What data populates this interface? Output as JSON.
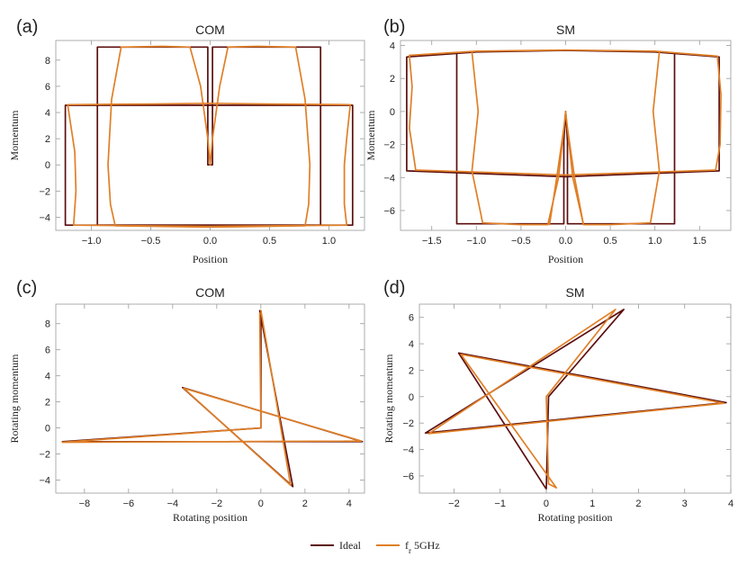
{
  "legend": {
    "items": [
      {
        "label": "Ideal",
        "color": "#5c0f0f"
      },
      {
        "label": "f",
        "sub": "r",
        "suffix": " 5GHz",
        "color": "#e07f27"
      }
    ]
  },
  "chart_data": [
    {
      "id": "a",
      "panel_label": "(a)",
      "type": "line",
      "title": "COM",
      "xlabel": "Position",
      "ylabel": "Momentum",
      "xlim": [
        -1.3,
        1.3
      ],
      "ylim": [
        -5.0,
        9.5
      ],
      "xticks": [
        -1.0,
        -0.5,
        0.0,
        0.5,
        1.0
      ],
      "xtick_labels": [
        "−1.0",
        "−0.5",
        "0.0",
        "0.5",
        "1.0"
      ],
      "yticks": [
        -4,
        -2,
        0,
        2,
        4,
        6,
        8
      ],
      "ytick_labels": [
        "−4",
        "−2",
        "0",
        "2",
        "4",
        "6",
        "8"
      ],
      "series": [
        {
          "name": "Ideal",
          "color": "#5c0f0f",
          "segments": [
            [
              [
                -0.95,
                9.0
              ],
              [
                -0.02,
                9.0
              ],
              [
                -0.02,
                0.0
              ],
              [
                0.02,
                0.0
              ],
              [
                0.02,
                9.0
              ],
              [
                0.93,
                9.0
              ],
              [
                0.93,
                -4.6
              ],
              [
                -0.95,
                -4.6
              ],
              [
                -0.95,
                9.0
              ]
            ],
            [
              [
                -1.22,
                4.55
              ],
              [
                1.2,
                4.55
              ],
              [
                1.2,
                -4.6
              ],
              [
                -1.22,
                -4.6
              ],
              [
                -1.22,
                4.55
              ]
            ]
          ]
        },
        {
          "name": "f_r 5GHz",
          "color": "#e07f27",
          "segments": [
            [
              [
                -0.75,
                9.0
              ],
              [
                -0.4,
                9.05
              ],
              [
                -0.17,
                9.0
              ],
              [
                -0.08,
                6.0
              ],
              [
                -0.02,
                2.0
              ],
              [
                0.0,
                0.0
              ],
              [
                0.02,
                2.0
              ],
              [
                0.08,
                6.0
              ],
              [
                0.15,
                9.0
              ],
              [
                0.4,
                9.05
              ],
              [
                0.72,
                9.0
              ],
              [
                0.8,
                5.0
              ],
              [
                0.84,
                0.0
              ],
              [
                0.83,
                -3.0
              ],
              [
                0.8,
                -4.65
              ],
              [
                0.0,
                -4.75
              ],
              [
                -0.8,
                -4.65
              ],
              [
                -0.84,
                -3.0
              ],
              [
                -0.86,
                0.0
              ],
              [
                -0.83,
                5.0
              ],
              [
                -0.75,
                9.0
              ]
            ],
            [
              [
                -1.2,
                4.6
              ],
              [
                -0.5,
                4.65
              ],
              [
                0.0,
                4.7
              ],
              [
                0.5,
                4.65
              ],
              [
                1.18,
                4.6
              ],
              [
                1.15,
                2.0
              ],
              [
                1.13,
                0.0
              ],
              [
                1.13,
                -3.0
              ],
              [
                1.15,
                -4.6
              ],
              [
                0.0,
                -4.7
              ],
              [
                -1.15,
                -4.6
              ],
              [
                -1.13,
                -2.0
              ],
              [
                -1.14,
                1.0
              ],
              [
                -1.2,
                4.6
              ]
            ]
          ]
        }
      ]
    },
    {
      "id": "b",
      "panel_label": "(b)",
      "type": "line",
      "title": "SM",
      "xlabel": "Position",
      "ylabel": "Momentum",
      "xlim": [
        -1.85,
        1.85
      ],
      "ylim": [
        -7.2,
        4.3
      ],
      "xticks": [
        -1.5,
        -1.0,
        -0.5,
        0.0,
        0.5,
        1.0,
        1.5
      ],
      "xtick_labels": [
        "−1.5",
        "−1.0",
        "−0.5",
        "0.0",
        "0.5",
        "1.0",
        "1.5"
      ],
      "yticks": [
        -6,
        -4,
        -2,
        0,
        2,
        4
      ],
      "ytick_labels": [
        "−6",
        "−4",
        "−2",
        "0",
        "2",
        "4"
      ],
      "series": [
        {
          "name": "Ideal",
          "color": "#5c0f0f",
          "segments": [
            [
              [
                -1.78,
                3.3
              ],
              [
                -1.0,
                3.6
              ],
              [
                0.0,
                3.7
              ],
              [
                1.0,
                3.6
              ],
              [
                1.72,
                3.3
              ],
              [
                1.72,
                -3.6
              ],
              [
                0.0,
                -3.95
              ],
              [
                -1.78,
                -3.6
              ],
              [
                -1.78,
                3.3
              ]
            ],
            [
              [
                -1.22,
                3.45
              ],
              [
                -1.22,
                -6.8
              ],
              [
                -0.02,
                -6.8
              ],
              [
                -0.02,
                -1.8
              ],
              [
                0.0,
                0.0
              ],
              [
                0.02,
                -1.8
              ],
              [
                0.02,
                -6.8
              ],
              [
                1.22,
                -6.8
              ],
              [
                1.22,
                3.45
              ]
            ]
          ]
        },
        {
          "name": "f_r 5GHz",
          "color": "#e07f27",
          "segments": [
            [
              [
                -1.75,
                3.4
              ],
              [
                -1.0,
                3.65
              ],
              [
                0.0,
                3.72
              ],
              [
                1.0,
                3.65
              ],
              [
                1.7,
                3.35
              ],
              [
                1.74,
                1.0
              ],
              [
                1.73,
                -2.0
              ],
              [
                1.68,
                -3.55
              ],
              [
                0.0,
                -3.85
              ],
              [
                -1.68,
                -3.55
              ],
              [
                -1.75,
                -1.0
              ],
              [
                -1.72,
                1.5
              ],
              [
                -1.75,
                3.4
              ]
            ],
            [
              [
                -1.05,
                3.6
              ],
              [
                -0.98,
                0.0
              ],
              [
                -1.05,
                -3.6
              ],
              [
                -0.93,
                -6.75
              ],
              [
                -0.5,
                -6.85
              ],
              [
                -0.2,
                -6.85
              ],
              [
                -0.08,
                -4.0
              ],
              [
                0.0,
                0.0
              ],
              [
                0.08,
                -4.0
              ],
              [
                0.2,
                -6.85
              ],
              [
                0.5,
                -6.85
              ],
              [
                0.95,
                -6.75
              ],
              [
                1.05,
                -3.6
              ],
              [
                0.98,
                0.0
              ],
              [
                1.05,
                3.6
              ]
            ],
            [
              [
                -0.02,
                -1.0
              ],
              [
                -0.1,
                -4.0
              ],
              [
                -0.18,
                -6.85
              ]
            ],
            [
              [
                0.02,
                -1.0
              ],
              [
                0.1,
                -4.0
              ],
              [
                0.2,
                -6.85
              ]
            ]
          ]
        }
      ]
    },
    {
      "id": "c",
      "panel_label": "(c)",
      "type": "line",
      "title": "COM",
      "xlabel": "Rotating position",
      "ylabel": "Rotating momentum",
      "xlim": [
        -9.3,
        4.7
      ],
      "ylim": [
        -5.0,
        9.5
      ],
      "xticks": [
        -8,
        -6,
        -4,
        -2,
        0,
        2,
        4
      ],
      "xtick_labels": [
        "−8",
        "−6",
        "−4",
        "−2",
        "0",
        "2",
        "4"
      ],
      "yticks": [
        -4,
        -2,
        0,
        2,
        4,
        6,
        8
      ],
      "ytick_labels": [
        "−4",
        "−2",
        "0",
        "2",
        "4",
        "6",
        "8"
      ],
      "series": [
        {
          "name": "Ideal",
          "color": "#5c0f0f",
          "segments": [
            [
              [
                -0.05,
                9.0
              ],
              [
                1.45,
                -4.5
              ],
              [
                -3.55,
                3.1
              ],
              [
                4.6,
                -1.05
              ],
              [
                -9.0,
                -1.05
              ],
              [
                0.0,
                0.0
              ],
              [
                0.0,
                9.0
              ]
            ]
          ]
        },
        {
          "name": "f_r 5GHz",
          "color": "#e07f27",
          "segments": [
            [
              [
                0.0,
                9.0
              ],
              [
                1.35,
                -4.4
              ],
              [
                -3.5,
                3.05
              ],
              [
                4.55,
                -1.0
              ],
              [
                -9.0,
                -1.1
              ],
              [
                0.0,
                0.0
              ],
              [
                -0.05,
                8.8
              ]
            ]
          ]
        }
      ]
    },
    {
      "id": "d",
      "panel_label": "(d)",
      "type": "line",
      "title": "SM",
      "xlabel": "Rotating position",
      "ylabel": "Rotating momentum",
      "xlim": [
        -2.75,
        4.0
      ],
      "ylim": [
        -7.3,
        7.0
      ],
      "xticks": [
        -2,
        -1,
        0,
        1,
        2,
        3,
        4
      ],
      "xtick_labels": [
        "−2",
        "−1",
        "0",
        "1",
        "2",
        "3",
        "4"
      ],
      "yticks": [
        -6,
        -4,
        -2,
        0,
        2,
        4,
        6
      ],
      "ytick_labels": [
        "−6",
        "−4",
        "−2",
        "0",
        "2",
        "4",
        "6"
      ],
      "series": [
        {
          "name": "Ideal",
          "color": "#5c0f0f",
          "segments": [
            [
              [
                0.0,
                -7.0
              ],
              [
                -1.9,
                3.3
              ],
              [
                3.9,
                -0.45
              ],
              [
                -2.62,
                -2.75
              ],
              [
                1.68,
                6.6
              ],
              [
                0.05,
                0.0
              ],
              [
                0.0,
                -7.0
              ]
            ]
          ]
        },
        {
          "name": "f_r 5GHz",
          "color": "#e07f27",
          "segments": [
            [
              [
                0.22,
                -6.9
              ],
              [
                -1.85,
                3.2
              ],
              [
                3.85,
                -0.5
              ],
              [
                -2.55,
                -2.8
              ],
              [
                1.5,
                6.6
              ],
              [
                0.0,
                0.0
              ],
              [
                0.05,
                -6.6
              ],
              [
                0.22,
                -6.9
              ]
            ]
          ]
        }
      ]
    }
  ]
}
